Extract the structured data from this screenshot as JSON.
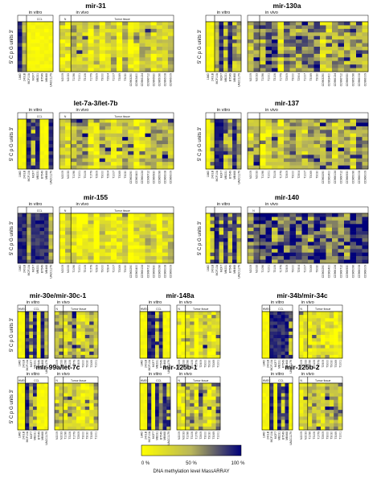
{
  "panels": [
    {
      "title": "mir-31",
      "in_vitro_label": "in vitro",
      "in_vivo_label": "in vivo",
      "hmec_label": "",
      "ccl_label": "CCL",
      "normal_label": "N",
      "tumor_label": "Tumor tissue",
      "y_label": "5' C p G   units 3'",
      "in_vitro_samples": [
        "184D",
        "240LB",
        "MCF10A",
        "MCF7",
        "MB231",
        "BT549",
        "MB468",
        "UACC1179"
      ],
      "in_vivo_samples": [
        "N2009",
        "N2033",
        "T1096",
        "T1001",
        "T3106",
        "T1779",
        "T2909",
        "T3000",
        "T2904",
        "T1007",
        "T3069",
        "T3030",
        "CD963290",
        "CD963400",
        "CD966134",
        "CD966712",
        "CD966930",
        "CD965096",
        "CD966008",
        "CD966009"
      ]
    },
    {
      "title": "mir-130a",
      "in_vitro_label": "in vitro",
      "in_vivo_label": "in vivo",
      "hmec_label": "",
      "ccl_label": "",
      "normal_label": "",
      "tumor_label": "",
      "y_label": "5' C p G   units 3'",
      "in_vitro_samples": [
        "184D",
        "240LB",
        "MCF10A",
        "MCF7",
        "MB231",
        "BT549",
        "MB468",
        "UACC1179"
      ],
      "in_vivo_samples": [
        "N2009",
        "N2033",
        "T1096",
        "T1001",
        "T3106",
        "T1779",
        "T2909",
        "T3000",
        "T2904",
        "T1007",
        "T3069",
        "T3030",
        "CD963290",
        "CD963400",
        "CD966134",
        "CD966712",
        "CD966930",
        "CD965096",
        "CD966008",
        "CD966009"
      ]
    },
    {
      "title": "let-7a-3/let-7b",
      "in_vitro_label": "in vitro",
      "in_vivo_label": "in vivo",
      "hmec_label": "",
      "ccl_label": "CCL",
      "normal_label": "N",
      "tumor_label": "Tumor tissue",
      "y_label": "5' C p G   units 3'",
      "in_vitro_samples": [
        "184D",
        "240LB",
        "MCF10A",
        "MCF7",
        "MB231",
        "BT549",
        "MB468",
        "UACC1179"
      ],
      "in_vivo_samples": [
        "N2009",
        "N2033",
        "T1096",
        "T1001",
        "T3106",
        "T1779",
        "T2909",
        "T3000",
        "T2904",
        "T1007",
        "T3069",
        "T3030",
        "CD963290",
        "CD963400",
        "CD966134",
        "CD966712",
        "CD966930",
        "CD965096",
        "CD966008",
        "CD966009"
      ]
    },
    {
      "title": "mir-137",
      "in_vitro_label": "in vitro",
      "in_vivo_label": "in vivo",
      "hmec_label": "",
      "ccl_label": "",
      "normal_label": "",
      "tumor_label": "",
      "y_label": "5' C p G   units 3'",
      "in_vitro_samples": [
        "184D",
        "240LB",
        "MCF10A",
        "MCF7",
        "MB231",
        "BT549",
        "MB468",
        "UACC1179"
      ],
      "in_vivo_samples": [
        "N2009",
        "N2033",
        "T1096",
        "T1001",
        "T3106",
        "T1779",
        "T2909",
        "T3000",
        "T2904",
        "T1007",
        "T3069",
        "T3030",
        "CD963290",
        "CD963400",
        "CD966134",
        "CD966712",
        "CD966930",
        "CD965096",
        "CD966008",
        "CD966009"
      ]
    },
    {
      "title": "mir-155",
      "in_vitro_label": "in vitro",
      "in_vivo_label": "in vivo",
      "hmec_label": "",
      "ccl_label": "CCL",
      "normal_label": "N",
      "tumor_label": "Tumor tissue",
      "y_label": "5' C p G   units 3'",
      "in_vitro_samples": [
        "184D",
        "240LB",
        "MCF10A",
        "MCF7",
        "MB231",
        "BT549",
        "MB468",
        "UACC1179"
      ],
      "in_vivo_samples": [
        "N2009",
        "N2033",
        "T1096",
        "T1001",
        "T3106",
        "T1779",
        "T2909",
        "T3000",
        "T2904",
        "T1007",
        "T3069",
        "T3030",
        "CD963290",
        "CD963400",
        "CD966134",
        "CD966712",
        "CD966930",
        "CD965096",
        "CD966008",
        "CD966009"
      ]
    },
    {
      "title": "mir-140",
      "in_vitro_label": "in vitro",
      "in_vivo_label": "in vivo",
      "hmec_label": "",
      "ccl_label": "",
      "normal_label": "N",
      "tumor_label": "",
      "y_label": "5' C p G   units 3'",
      "in_vitro_samples": [
        "184D",
        "240LB",
        "MCF10A",
        "MCF7",
        "MB231",
        "BT549",
        "MB468",
        "UACC1179"
      ],
      "in_vivo_samples": [
        "N2009",
        "N2033",
        "T1096",
        "T1001",
        "T3106",
        "T1779",
        "T2909",
        "T3000",
        "T2904",
        "T1007",
        "T3069",
        "T3030",
        "CD963290",
        "CD963400",
        "CD966134",
        "CD966712",
        "CD966930",
        "CD965096",
        "CD966008",
        "CD966009"
      ]
    },
    {
      "title": "mir-30e/mir-30c-1",
      "in_vitro_label": "in vitro",
      "in_vivo_label": "in vivo",
      "hmec_label": "HMEC",
      "ccl_label": "CCL",
      "normal_label": "N",
      "tumor_label": "Tumor tissue",
      "y_label": "5' C p G   units 3'",
      "in_vitro_samples": [
        "184D",
        "240LB",
        "MCF10A",
        "MCF7",
        "MB231",
        "BT549",
        "MB468",
        "UACC1179"
      ],
      "in_vivo_samples": [
        "N2009",
        "N2033",
        "T1096",
        "T3106",
        "T1779",
        "T2909",
        "T3000",
        "T3030",
        "T3069",
        "T1001"
      ]
    },
    {
      "title": "mir-148a",
      "in_vitro_label": "in vitro",
      "in_vivo_label": "in vivo",
      "hmec_label": "HMEC",
      "ccl_label": "CCL",
      "normal_label": "N",
      "tumor_label": "Tumor tissue",
      "y_label": "",
      "in_vitro_samples": [
        "184D",
        "240LB",
        "MCF10A",
        "MCF7",
        "MB231",
        "BT549",
        "MB468",
        "UACC1179"
      ],
      "in_vivo_samples": [
        "N2009",
        "N2033",
        "T1096",
        "T3106",
        "T1779",
        "T2909",
        "T3000",
        "T3030",
        "T3069",
        "T1001"
      ]
    },
    {
      "title": "mir-34b/mir-34c",
      "in_vitro_label": "in vitro",
      "in_vivo_label": "in vivo",
      "hmec_label": "HMEC",
      "ccl_label": "CCL",
      "normal_label": "N",
      "tumor_label": "Tumor tissue",
      "y_label": "",
      "in_vitro_samples": [
        "184D",
        "240LB",
        "MCF10A",
        "MCF7",
        "MB231",
        "BT549",
        "MB468",
        "UACC1179"
      ],
      "in_vivo_samples": [
        "N2009",
        "N2033",
        "T1096",
        "T3106",
        "T1779",
        "T2909",
        "T3000",
        "T3030",
        "T3069",
        "T1001"
      ]
    },
    {
      "title": "mir-99a/let-7c",
      "in_vitro_label": "in vitro",
      "in_vivo_label": "in vivo",
      "hmec_label": "HMEC",
      "ccl_label": "CCL",
      "normal_label": "N",
      "tumor_label": "Tumor tissue",
      "y_label": "5' C p G   units 3'",
      "in_vitro_samples": [
        "184D",
        "240LB",
        "MCF10A",
        "MCF7",
        "MB231",
        "BT549",
        "MB468",
        "UACC1179"
      ],
      "in_vivo_samples": [
        "N2009",
        "N2033",
        "T1096",
        "T3106",
        "T1779",
        "T2909",
        "T3000",
        "T3030",
        "T3069",
        "T1001"
      ]
    },
    {
      "title": "mir-125b-1",
      "in_vitro_label": "in vitro",
      "in_vivo_label": "in vivo",
      "hmec_label": "HMEC",
      "ccl_label": "CCL",
      "normal_label": "N",
      "tumor_label": "Tumor tissue",
      "y_label": "",
      "in_vitro_samples": [
        "184D",
        "240LB",
        "MCF10A",
        "MCF7",
        "MB231",
        "BT549",
        "MB468",
        "UACC1179"
      ],
      "in_vivo_samples": [
        "N2009",
        "N2033",
        "T1096",
        "T3106",
        "T1779",
        "T2909",
        "T3000",
        "T3030",
        "T3069",
        "T1001"
      ]
    },
    {
      "title": "mir-125b-2",
      "in_vitro_label": "in vitro",
      "in_vivo_label": "in vivo",
      "hmec_label": "HMEC",
      "ccl_label": "CCL",
      "normal_label": "N",
      "tumor_label": "Tumor tissue",
      "y_label": "",
      "in_vitro_samples": [
        "184D",
        "240LB",
        "MCF10A",
        "MCF7",
        "MB231",
        "BT549",
        "MB468",
        "UACC1179"
      ],
      "in_vivo_samples": [
        "N2009",
        "N2033",
        "T1096",
        "T3106",
        "T1779",
        "T2909",
        "T3000",
        "T3030",
        "T3069",
        "T1001"
      ]
    }
  ],
  "legend": {
    "tick_labels": [
      "0 %",
      "50 %",
      "100 %"
    ],
    "caption": "DNA methylation level MassARRAY",
    "colors": {
      "low": "#ffff00",
      "mid": "#b8b55a",
      "high": "#00007a"
    }
  }
}
